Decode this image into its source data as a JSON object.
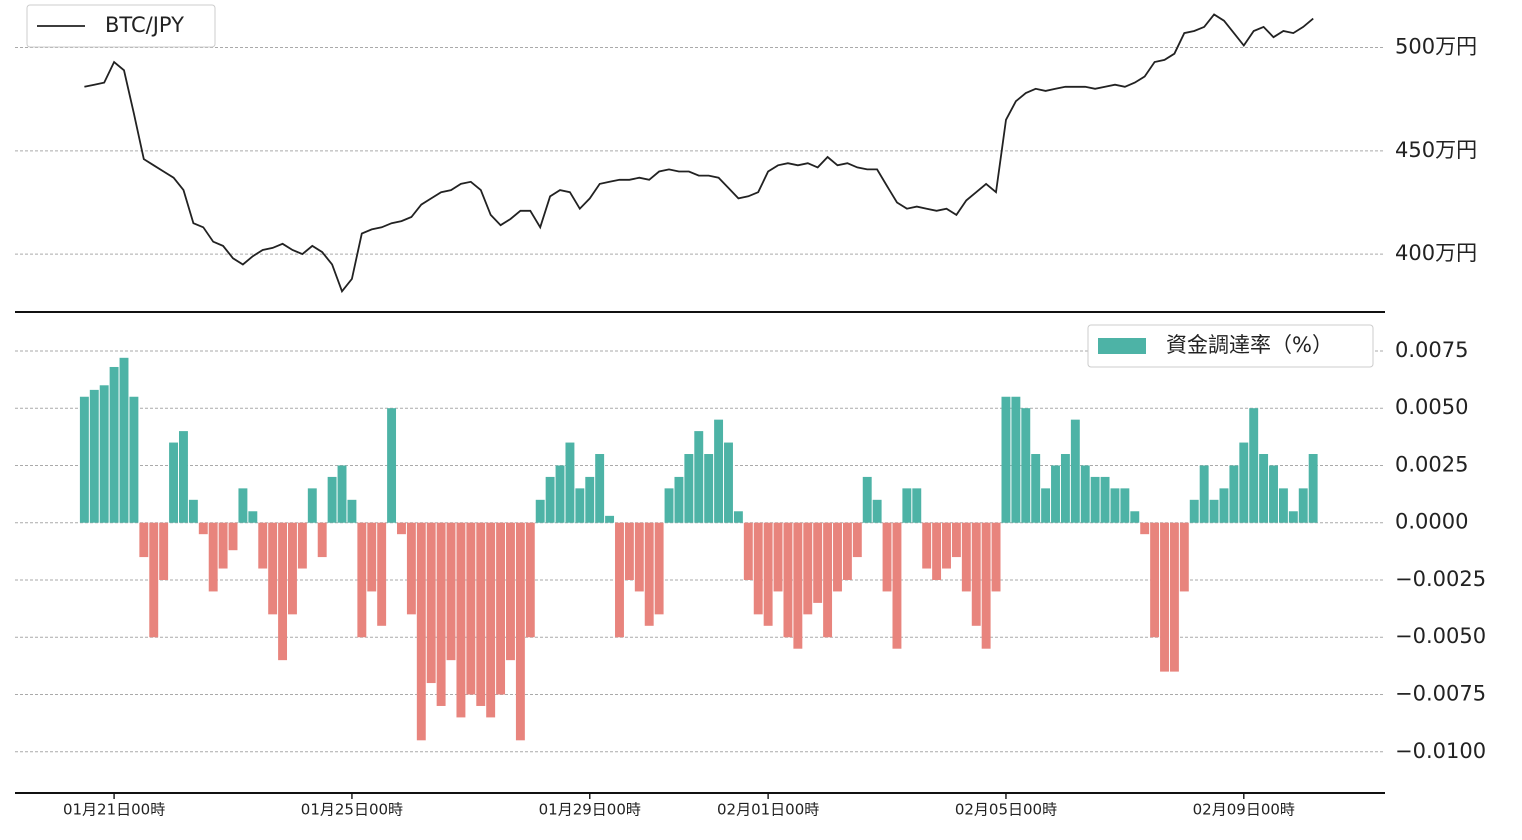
{
  "chart_data": [
    {
      "type": "line",
      "x": [
        -12,
        -8,
        -4,
        0,
        4,
        8,
        12,
        16,
        20,
        24,
        28,
        32,
        36,
        40,
        44,
        48,
        52,
        56,
        60,
        64,
        68,
        72,
        76,
        80,
        84,
        88,
        92,
        96,
        100,
        104,
        108,
        112,
        116,
        120,
        124,
        128,
        132,
        136,
        140,
        144,
        148,
        152,
        156,
        160,
        164,
        168,
        172,
        176,
        180,
        184,
        188,
        192,
        196,
        200,
        204,
        208,
        212,
        216,
        220,
        224,
        228,
        232,
        236,
        240,
        244,
        248,
        252,
        256,
        260,
        264,
        268,
        272,
        276,
        280,
        284,
        288,
        292,
        296,
        300,
        304,
        308,
        312,
        316,
        320,
        324,
        328,
        332,
        336,
        340,
        344,
        348,
        352,
        356,
        360,
        364,
        368,
        372,
        376,
        380,
        384,
        388,
        392,
        396,
        400,
        404,
        408,
        412,
        416,
        420,
        424,
        428,
        432,
        436,
        440,
        444,
        448,
        452,
        456,
        460,
        464,
        468,
        472,
        476,
        480,
        484
      ],
      "series": [
        {
          "name": "BTC/JPY",
          "color": "#222222",
          "values": [
            481,
            482,
            483,
            493,
            489,
            468,
            446,
            443,
            440,
            437,
            431,
            415,
            413,
            406,
            404,
            398,
            395,
            399,
            402,
            403,
            405,
            402,
            400,
            404,
            401,
            395,
            382,
            388,
            410,
            412,
            413,
            415,
            416,
            418,
            424,
            427,
            430,
            431,
            434,
            435,
            431,
            419,
            414,
            417,
            421,
            421,
            413,
            428,
            431,
            430,
            422,
            427,
            434,
            435,
            436,
            436,
            437,
            436,
            440,
            441,
            440,
            440,
            438,
            438,
            437,
            432,
            427,
            428,
            430,
            440,
            443,
            444,
            443,
            444,
            442,
            447,
            443,
            444,
            442,
            441,
            441,
            433,
            425,
            422,
            423,
            422,
            421,
            422,
            419,
            426,
            430,
            434,
            430,
            465,
            474,
            478,
            480,
            479,
            480,
            481,
            481,
            481,
            480,
            481,
            482,
            481,
            483,
            486,
            493,
            494,
            497,
            507,
            508,
            510,
            516,
            513,
            507,
            501,
            508,
            510,
            505,
            508,
            507,
            510,
            514
          ]
        }
      ],
      "xlim": [
        -40,
        513
      ],
      "ylim": [
        372,
        523
      ],
      "yticks": [
        {
          "value": 400,
          "label": "400万円"
        },
        {
          "value": 450,
          "label": "450万円"
        },
        {
          "value": 500,
          "label": "500万円"
        }
      ],
      "grid": true,
      "legend": "upper left"
    },
    {
      "type": "bar",
      "x": [
        -12,
        -8,
        -4,
        0,
        4,
        8,
        12,
        16,
        20,
        24,
        28,
        32,
        36,
        40,
        44,
        48,
        52,
        56,
        60,
        64,
        68,
        72,
        76,
        80,
        84,
        88,
        92,
        96,
        100,
        104,
        108,
        112,
        116,
        120,
        124,
        128,
        132,
        136,
        140,
        144,
        148,
        152,
        156,
        160,
        164,
        168,
        172,
        176,
        180,
        184,
        188,
        192,
        196,
        200,
        204,
        208,
        212,
        216,
        220,
        224,
        228,
        232,
        236,
        240,
        244,
        248,
        252,
        256,
        260,
        264,
        268,
        272,
        276,
        280,
        284,
        288,
        292,
        296,
        300,
        304,
        308,
        312,
        316,
        320,
        324,
        328,
        332,
        336,
        340,
        344,
        348,
        352,
        356,
        360,
        364,
        368,
        372,
        376,
        380,
        384,
        388,
        392,
        396,
        400,
        404,
        408,
        412,
        416,
        420,
        424,
        428,
        432,
        436,
        440,
        444,
        448,
        452,
        456,
        460,
        464,
        468,
        472,
        476,
        480,
        484
      ],
      "series": [
        {
          "name": "資金調達率（%）",
          "color": "#4db3a6",
          "negative_color": "#e8847d",
          "values": [
            0.0055,
            0.0058,
            0.006,
            0.0068,
            0.0072,
            0.0055,
            -0.0015,
            -0.005,
            -0.0025,
            0.0035,
            0.004,
            0.001,
            -0.0005,
            -0.003,
            -0.002,
            -0.0012,
            0.0015,
            0.0005,
            -0.002,
            -0.004,
            -0.006,
            -0.004,
            -0.002,
            0.0015,
            -0.0015,
            0.002,
            0.0025,
            0.001,
            -0.005,
            -0.003,
            -0.0045,
            0.005,
            -0.0005,
            -0.004,
            -0.0095,
            -0.007,
            -0.008,
            -0.006,
            -0.0085,
            -0.0075,
            -0.008,
            -0.0085,
            -0.0075,
            -0.006,
            -0.0095,
            -0.005,
            0.001,
            0.002,
            0.0025,
            0.0035,
            0.0015,
            0.002,
            0.003,
            0.0003,
            -0.005,
            -0.0025,
            -0.003,
            -0.0045,
            -0.004,
            0.0015,
            0.002,
            0.003,
            0.004,
            0.003,
            0.0045,
            0.0035,
            0.0005,
            -0.0025,
            -0.004,
            -0.0045,
            -0.003,
            -0.005,
            -0.0055,
            -0.004,
            -0.0035,
            -0.005,
            -0.003,
            -0.0025,
            -0.0015,
            0.002,
            0.001,
            -0.003,
            -0.0055,
            0.0015,
            0.0015,
            -0.002,
            -0.0025,
            -0.002,
            -0.0015,
            -0.003,
            -0.0045,
            -0.0055,
            -0.003,
            0.0055,
            0.0055,
            0.005,
            0.003,
            0.0015,
            0.0025,
            0.003,
            0.0045,
            0.0025,
            0.002,
            0.002,
            0.0015,
            0.0015,
            0.0005,
            -0.0005,
            -0.005,
            -0.0065,
            -0.0065,
            -0.003,
            0.001,
            0.0025,
            0.001,
            0.0015,
            0.0025,
            0.0035,
            0.005,
            0.003,
            0.0025,
            0.0015,
            0.0005,
            0.0015,
            0.003
          ]
        }
      ],
      "xlim": [
        -40,
        513
      ],
      "ylim": [
        -0.0118,
        0.0092
      ],
      "xticks": [
        {
          "value": 0,
          "label": "01月21日00時"
        },
        {
          "value": 96,
          "label": "01月25日00時"
        },
        {
          "value": 192,
          "label": "01月29日00時"
        },
        {
          "value": 264,
          "label": "02月01日00時"
        },
        {
          "value": 360,
          "label": "02月05日00時"
        },
        {
          "value": 456,
          "label": "02月09日00時"
        }
      ],
      "yticks": [
        {
          "value": -0.01,
          "label": "−0.0100"
        },
        {
          "value": -0.0075,
          "label": "−0.0075"
        },
        {
          "value": -0.005,
          "label": "−0.0050"
        },
        {
          "value": -0.0025,
          "label": "−0.0025"
        },
        {
          "value": 0,
          "label": "0.0000"
        },
        {
          "value": 0.0025,
          "label": "0.0025"
        },
        {
          "value": 0.005,
          "label": "0.0050"
        },
        {
          "value": 0.0075,
          "label": "0.0075"
        }
      ],
      "grid": true,
      "legend": "upper right"
    }
  ]
}
